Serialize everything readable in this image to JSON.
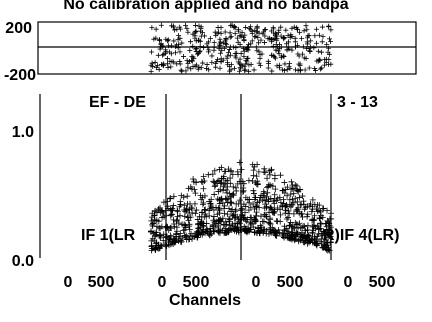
{
  "chart_data": {
    "type": "scatter",
    "marker": "+",
    "color": "#000000",
    "title": "No calibration applied and no bandpa",
    "xlabel": "Channels",
    "x_tick_labels": [
      "0",
      "500",
      "0",
      "500",
      "0",
      "500",
      "0",
      "500"
    ],
    "phase_panel": {
      "y_tick_labels": [
        "200",
        "-200"
      ],
      "ylim": [
        -200,
        200
      ],
      "channel_range": [
        380,
        580
      ],
      "value_range": [
        -180,
        180
      ]
    },
    "amplitude_panel": {
      "y_tick_labels": [
        "1.0",
        "0.0"
      ],
      "ylim": [
        0,
        1.2
      ],
      "channel_range": [
        380,
        580
      ],
      "value_range_min": [
        0.05,
        0.2
      ],
      "value_range_max": [
        0.35,
        0.75
      ],
      "baseline_label": "EF - DE",
      "channel_label": "3 - 13",
      "if_labels": [
        "IF 1(LR",
        "R)IF 4(LR)"
      ]
    }
  }
}
